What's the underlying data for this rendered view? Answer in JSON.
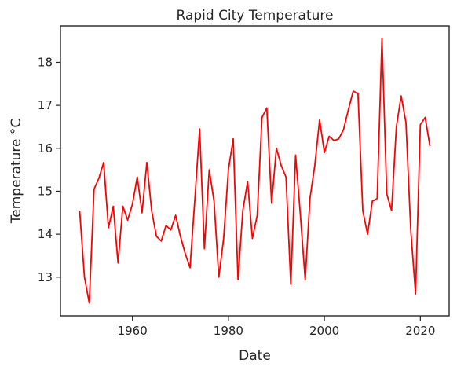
{
  "chart_data": {
    "type": "line",
    "title": "Rapid City Temperature",
    "xlabel": "Date",
    "ylabel": "Temperature $^\\circ$C",
    "ylabel_display": "Temperature °C",
    "xlim": [
      1945,
      2026
    ],
    "ylim": [
      12.1,
      18.85
    ],
    "xticks": [
      1960,
      1980,
      2000,
      2020
    ],
    "yticks": [
      13,
      14,
      15,
      16,
      17,
      18
    ],
    "grid": false,
    "series": [
      {
        "color": "#ff0000",
        "x": [
          1949,
          1950,
          1951,
          1952,
          1953,
          1954,
          1955,
          1956,
          1957,
          1958,
          1959,
          1960,
          1961,
          1962,
          1963,
          1964,
          1965,
          1966,
          1967,
          1968,
          1969,
          1970,
          1971,
          1972,
          1973,
          1974,
          1975,
          1976,
          1977,
          1978,
          1979,
          1980,
          1981,
          1982,
          1983,
          1984,
          1985,
          1986,
          1987,
          1988,
          1989,
          1990,
          1991,
          1992,
          1993,
          1994,
          1995,
          1996,
          1997,
          1998,
          1999,
          2000,
          2001,
          2002,
          2003,
          2004,
          2005,
          2006,
          2007,
          2008,
          2009,
          2010,
          2011,
          2012,
          2013,
          2014,
          2015,
          2016,
          2017,
          2018,
          2019,
          2020,
          2021,
          2022
        ],
        "values": [
          14.55,
          13.0,
          12.4,
          15.05,
          15.3,
          15.67,
          14.15,
          14.65,
          13.33,
          14.65,
          14.33,
          14.7,
          15.33,
          14.5,
          15.67,
          14.55,
          13.95,
          13.84,
          14.2,
          14.1,
          14.44,
          13.95,
          13.55,
          13.22,
          14.8,
          16.45,
          13.66,
          15.5,
          14.77,
          13.0,
          13.9,
          15.5,
          16.22,
          12.94,
          14.55,
          15.22,
          13.9,
          14.44,
          16.72,
          16.94,
          14.72,
          16.0,
          15.6,
          15.33,
          12.83,
          15.84,
          14.44,
          12.94,
          14.84,
          15.6,
          16.66,
          15.9,
          16.28,
          16.18,
          16.22,
          16.44,
          16.9,
          17.33,
          17.28,
          14.55,
          14.0,
          14.77,
          14.83,
          18.56,
          14.94,
          14.55,
          16.5,
          17.22,
          16.6,
          14.1,
          12.61,
          16.55,
          16.72,
          16.05
        ]
      }
    ]
  }
}
